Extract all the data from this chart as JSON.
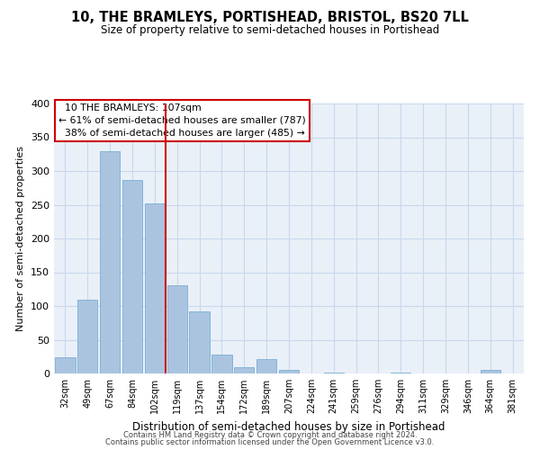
{
  "title": "10, THE BRAMLEYS, PORTISHEAD, BRISTOL, BS20 7LL",
  "subtitle": "Size of property relative to semi-detached houses in Portishead",
  "xlabel": "Distribution of semi-detached houses by size in Portishead",
  "ylabel": "Number of semi-detached properties",
  "categories": [
    "32sqm",
    "49sqm",
    "67sqm",
    "84sqm",
    "102sqm",
    "119sqm",
    "137sqm",
    "154sqm",
    "172sqm",
    "189sqm",
    "207sqm",
    "224sqm",
    "241sqm",
    "259sqm",
    "276sqm",
    "294sqm",
    "311sqm",
    "329sqm",
    "346sqm",
    "364sqm",
    "381sqm"
  ],
  "values": [
    24,
    110,
    330,
    287,
    252,
    131,
    92,
    28,
    10,
    22,
    5,
    0,
    2,
    0,
    0,
    1,
    0,
    0,
    0,
    5,
    0
  ],
  "bar_color": "#aac4df",
  "bar_edge_color": "#7aafd4",
  "vline_color": "#cc0000",
  "property_label": "10 THE BRAMLEYS: 107sqm",
  "pct_smaller": 61,
  "count_smaller": 787,
  "pct_larger": 38,
  "count_larger": 485,
  "annotation_box_color": "#cc0000",
  "ylim": [
    0,
    400
  ],
  "yticks": [
    0,
    50,
    100,
    150,
    200,
    250,
    300,
    350,
    400
  ],
  "grid_color": "#c8d8ee",
  "background_color": "#eaf0f8",
  "footer1": "Contains HM Land Registry data © Crown copyright and database right 2024.",
  "footer2": "Contains public sector information licensed under the Open Government Licence v3.0."
}
